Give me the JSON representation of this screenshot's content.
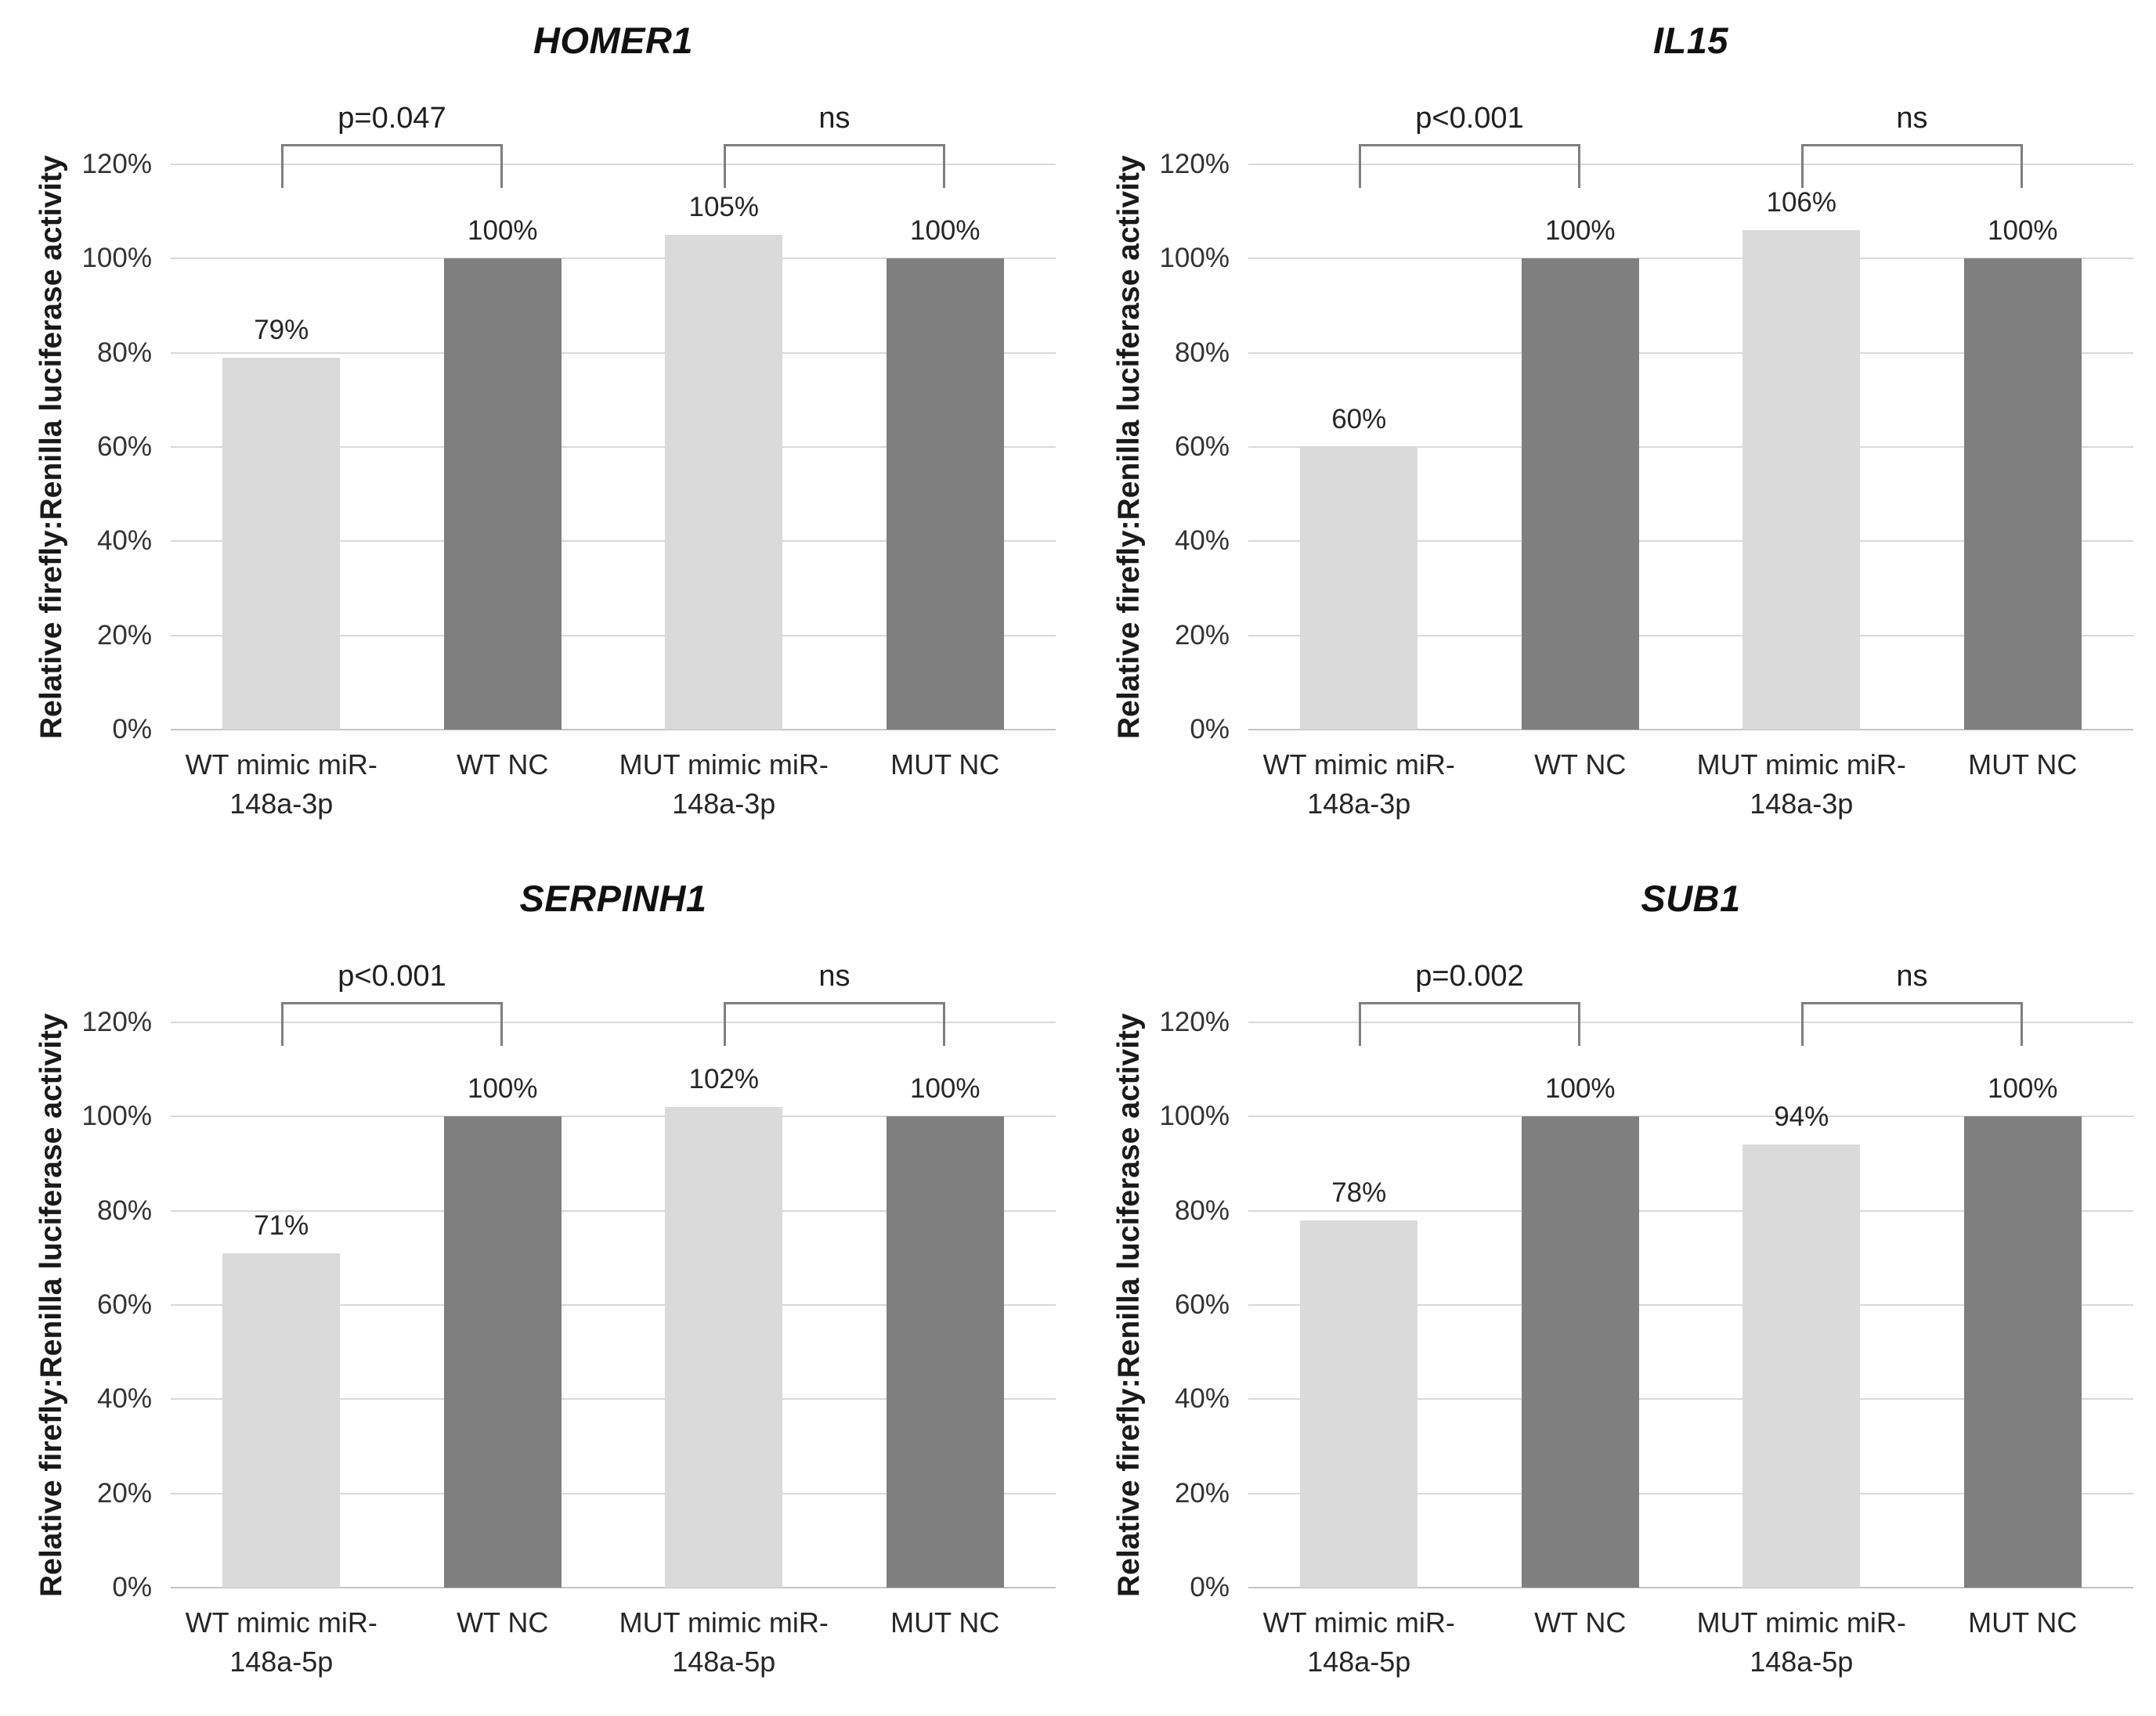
{
  "figure": {
    "y_axis_label": "Relative firefly:Renilla luciferase activity",
    "y_tick_labels": [
      "0%",
      "20%",
      "40%",
      "60%",
      "80%",
      "100%",
      "120%"
    ],
    "colors": {
      "mimic_bar": "#dadada",
      "nc_bar": "#7f7f7f",
      "gridline": "#d9d9d9",
      "baseline": "#c3c3c3",
      "bracket": "#7f7f7f",
      "text": "#262626",
      "background": "#ffffff"
    }
  },
  "chart_data": [
    {
      "type": "bar",
      "title": "HOMER1",
      "ylabel": "Relative firefly:Renilla luciferase activity",
      "ylim": [
        0,
        120
      ],
      "ytick_step": 20,
      "grid": true,
      "legend": "none",
      "categories": [
        "WT mimic miR-\n148a-3p",
        "WT NC",
        "MUT mimic miR-\n148a-3p",
        "MUT NC"
      ],
      "values": [
        79,
        100,
        105,
        100
      ],
      "value_labels": [
        "79%",
        "100%",
        "105%",
        "100%"
      ],
      "bar_roles": [
        "mimic",
        "nc",
        "mimic",
        "nc"
      ],
      "significance": [
        {
          "from": 0,
          "to": 1,
          "label": "p=0.047"
        },
        {
          "from": 2,
          "to": 3,
          "label": "ns"
        }
      ]
    },
    {
      "type": "bar",
      "title": "IL15",
      "ylabel": "Relative firefly:Renilla luciferase activity",
      "ylim": [
        0,
        120
      ],
      "ytick_step": 20,
      "grid": true,
      "legend": "none",
      "categories": [
        "WT mimic miR-\n148a-3p",
        "WT NC",
        "MUT mimic miR-\n148a-3p",
        "MUT NC"
      ],
      "values": [
        60,
        100,
        106,
        100
      ],
      "value_labels": [
        "60%",
        "100%",
        "106%",
        "100%"
      ],
      "bar_roles": [
        "mimic",
        "nc",
        "mimic",
        "nc"
      ],
      "significance": [
        {
          "from": 0,
          "to": 1,
          "label": "p<0.001"
        },
        {
          "from": 2,
          "to": 3,
          "label": "ns"
        }
      ]
    },
    {
      "type": "bar",
      "title": "SERPINH1",
      "ylabel": "Relative firefly:Renilla luciferase activity",
      "ylim": [
        0,
        120
      ],
      "ytick_step": 20,
      "grid": true,
      "legend": "none",
      "categories": [
        "WT mimic miR-\n148a-5p",
        "WT NC",
        "MUT mimic miR-\n148a-5p",
        "MUT NC"
      ],
      "values": [
        71,
        100,
        102,
        100
      ],
      "value_labels": [
        "71%",
        "100%",
        "102%",
        "100%"
      ],
      "bar_roles": [
        "mimic",
        "nc",
        "mimic",
        "nc"
      ],
      "significance": [
        {
          "from": 0,
          "to": 1,
          "label": "p<0.001"
        },
        {
          "from": 2,
          "to": 3,
          "label": "ns"
        }
      ]
    },
    {
      "type": "bar",
      "title": "SUB1",
      "ylabel": "Relative firefly:Renilla luciferase activity",
      "ylim": [
        0,
        120
      ],
      "ytick_step": 20,
      "grid": true,
      "legend": "none",
      "categories": [
        "WT mimic miR-\n148a-5p",
        "WT NC",
        "MUT mimic miR-\n148a-5p",
        "MUT NC"
      ],
      "values": [
        78,
        100,
        94,
        100
      ],
      "value_labels": [
        "78%",
        "100%",
        "94%",
        "100%"
      ],
      "bar_roles": [
        "mimic",
        "nc",
        "mimic",
        "nc"
      ],
      "significance": [
        {
          "from": 0,
          "to": 1,
          "label": "p=0.002"
        },
        {
          "from": 2,
          "to": 3,
          "label": "ns"
        }
      ]
    }
  ]
}
